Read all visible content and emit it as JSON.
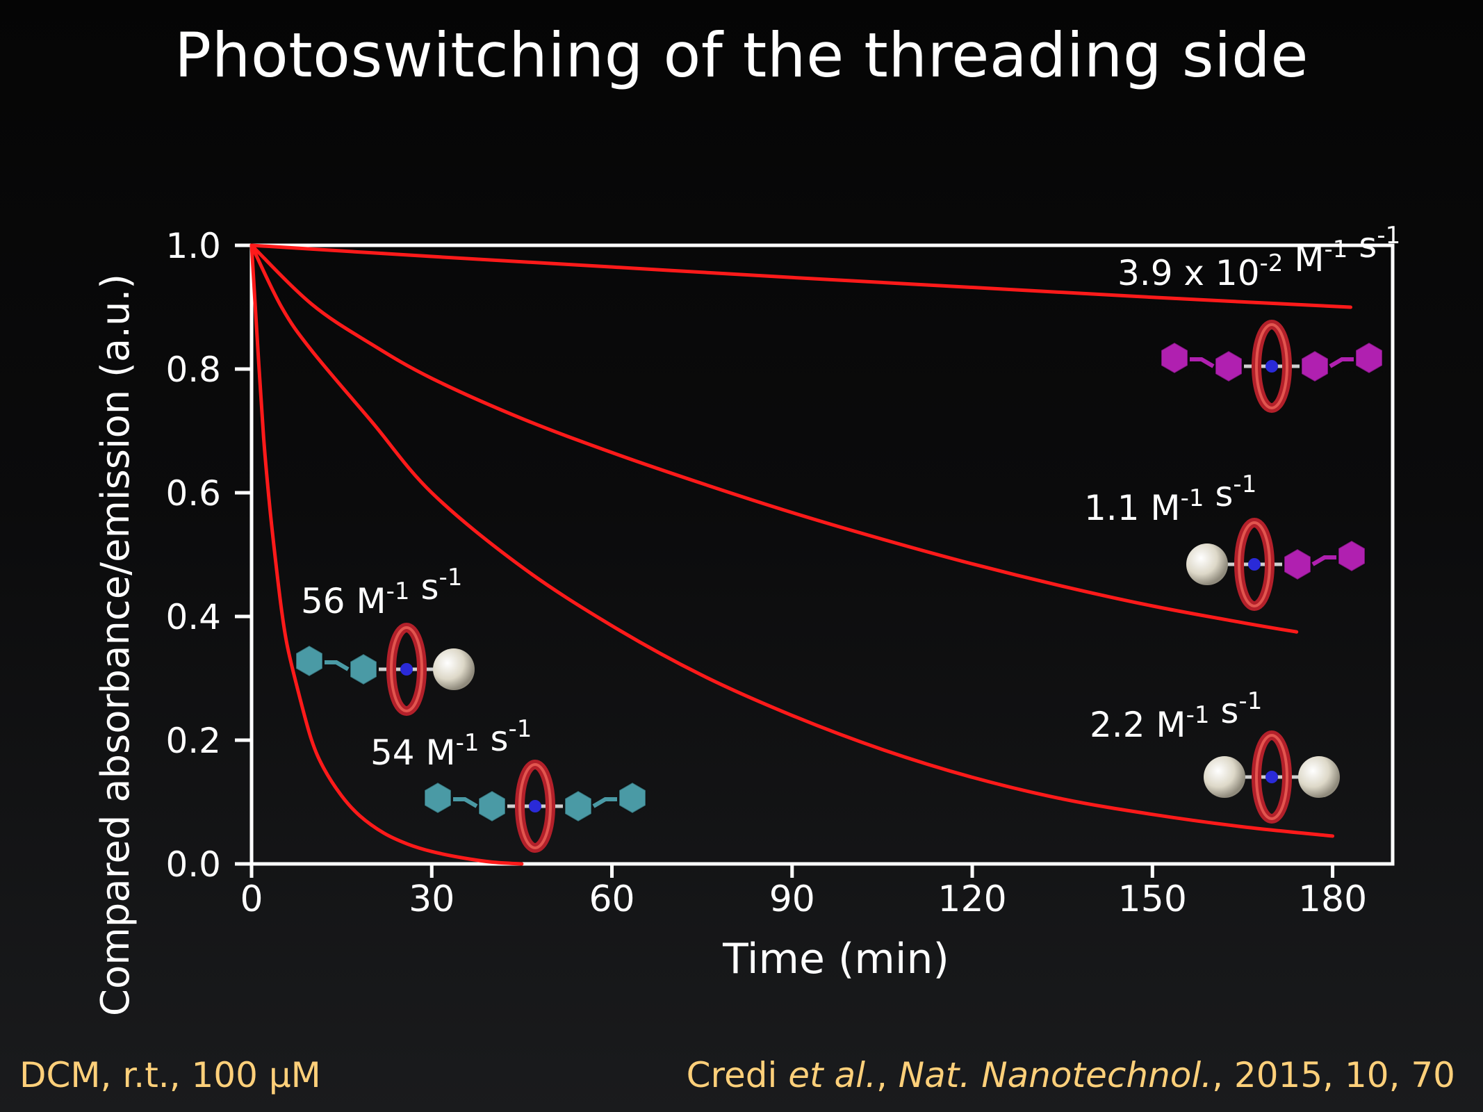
{
  "title": "Photoswitching of the threading side",
  "footer": {
    "conditions": "DCM, r.t., 100 μM",
    "citation_author": "Credi ",
    "citation_etal": "et al.",
    "citation_sep": ", ",
    "citation_journal": "Nat. Nanotechnol.",
    "citation_rest": ", 2015, 10, 70"
  },
  "colors": {
    "curve": "#ff1a1a",
    "axis": "#ffffff",
    "text": "#ffffff",
    "footer": "#ffd07a",
    "teal_stopper": "#4a9aa5",
    "magenta_stopper": "#b020b0",
    "ring": "#c0262a",
    "ball": "#e8e4d8"
  },
  "chart_data": {
    "type": "line",
    "xlabel": "Time (min)",
    "ylabel": "Compared absorbance/emission (a.u.)",
    "xlim": [
      0,
      190
    ],
    "ylim": [
      0,
      1.0
    ],
    "xticks": [
      0,
      30,
      60,
      90,
      120,
      150,
      180
    ],
    "yticks": [
      "0.0",
      "0.2",
      "0.4",
      "0.6",
      "0.8",
      "1.0"
    ],
    "grid": false,
    "series": [
      {
        "label": "3.9 x 10-2 M-1 s-1",
        "label_base": "3.9 x 10",
        "label_exp1": "-2",
        "label_mid": " M",
        "label_exp2": "-1",
        "label_tail": " s",
        "label_exp3": "-1",
        "stopper_left": "magenta",
        "stopper_right": "magenta",
        "x": [
          0,
          30,
          60,
          90,
          120,
          150,
          183
        ],
        "y": [
          1.0,
          0.982,
          0.965,
          0.948,
          0.932,
          0.916,
          0.9
        ]
      },
      {
        "label": "1.1 M-1 s-1",
        "label_base": "1.1 M",
        "label_exp1": "-1",
        "label_mid": " s",
        "label_exp2": "-1",
        "stopper_left": "ball",
        "stopper_right": "magenta",
        "x": [
          0,
          10,
          20,
          30,
          45,
          60,
          75,
          90,
          105,
          120,
          135,
          150,
          165,
          174
        ],
        "y": [
          1.0,
          0.905,
          0.84,
          0.785,
          0.72,
          0.665,
          0.615,
          0.568,
          0.525,
          0.485,
          0.449,
          0.417,
          0.39,
          0.375
        ]
      },
      {
        "label": "2.2 M-1 s-1",
        "label_base": "2.2 M",
        "label_exp1": "-1",
        "label_mid": " s",
        "label_exp2": "-1",
        "stopper_left": "ball",
        "stopper_right": "ball",
        "x": [
          0,
          5,
          10,
          20,
          30,
          45,
          60,
          75,
          90,
          105,
          120,
          135,
          150,
          165,
          180
        ],
        "y": [
          1.0,
          0.9,
          0.83,
          0.715,
          0.6,
          0.48,
          0.385,
          0.305,
          0.24,
          0.185,
          0.14,
          0.105,
          0.08,
          0.06,
          0.045
        ]
      },
      {
        "label": "56 M-1 s-1",
        "label_base": "56 M",
        "label_exp1": "-1",
        "label_mid": " s",
        "label_exp2": "-1",
        "stopper_left": "teal",
        "stopper_right": "ball",
        "x": [
          0,
          1,
          2,
          3,
          4,
          5,
          6,
          8,
          10,
          12,
          15,
          18,
          22,
          26,
          30,
          35,
          40,
          45
        ],
        "y": [
          1.0,
          0.84,
          0.69,
          0.58,
          0.49,
          0.41,
          0.35,
          0.27,
          0.2,
          0.155,
          0.11,
          0.078,
          0.05,
          0.032,
          0.02,
          0.01,
          0.003,
          0.0
        ]
      }
    ],
    "annotation_54": {
      "label_base": "54 M",
      "label_exp1": "-1",
      "label_mid": " s",
      "label_exp2": "-1",
      "stopper_left": "teal",
      "stopper_right": "teal"
    }
  }
}
